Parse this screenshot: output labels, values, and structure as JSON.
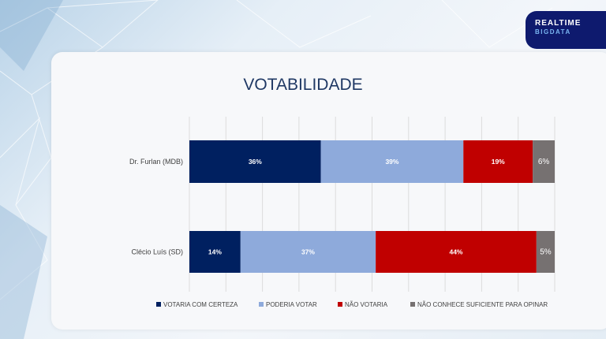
{
  "logo": {
    "line1": "REALTIME",
    "line2": "BIGDATA"
  },
  "chart_data": {
    "type": "bar",
    "stacked": true,
    "orientation": "horizontal",
    "title": "VOTABILIDADE",
    "categories": [
      "Dr. Furlan (MDB)",
      "Clécio Luís (SD)"
    ],
    "series": [
      {
        "name": "VOTARIA COM CERTEZA",
        "color": "#002060",
        "values": [
          36,
          14
        ]
      },
      {
        "name": "PODERIA VOTAR",
        "color": "#8eaadb",
        "values": [
          39,
          37
        ]
      },
      {
        "name": "NÃO VOTARIA",
        "color": "#c00000",
        "values": [
          19,
          44
        ]
      },
      {
        "name": "NÃO CONHECE SUFICIENTE PARA OPINAR",
        "color": "#767171",
        "values": [
          6,
          5
        ]
      }
    ],
    "xlim": [
      0,
      100
    ],
    "grid": true,
    "legend": "bottom"
  }
}
